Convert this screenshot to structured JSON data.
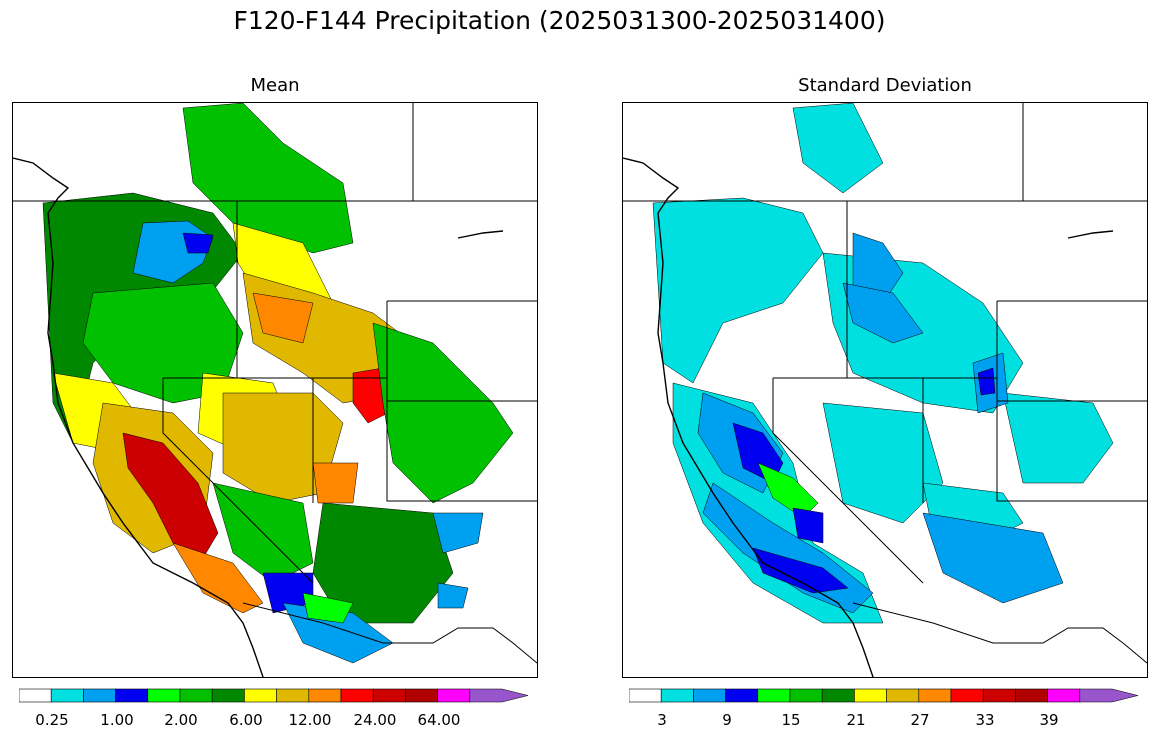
{
  "title": "F120-F144 Precipitation (2025031300-2025031400)",
  "panels": [
    {
      "title": "Mean",
      "colorbar": {
        "colors": [
          "#ffffff",
          "#00e0e0",
          "#00a0f0",
          "#0000f0",
          "#00ff00",
          "#00c000",
          "#008800",
          "#ffff00",
          "#e0b800",
          "#ff8800",
          "#ff0000",
          "#cc0000",
          "#b00000",
          "#ff00ff",
          "#9955cc"
        ],
        "tick_labels": [
          "0.25",
          "1.00",
          "2.00",
          "6.00",
          "12.00",
          "24.00",
          "64.00"
        ],
        "extend": "max"
      }
    },
    {
      "title": "Standard Deviation",
      "colorbar": {
        "colors": [
          "#ffffff",
          "#00e0e0",
          "#00a0f0",
          "#0000f0",
          "#00ff00",
          "#00c000",
          "#008800",
          "#ffff00",
          "#e0b800",
          "#ff8800",
          "#ff0000",
          "#cc0000",
          "#b00000",
          "#ff00ff",
          "#9955cc"
        ],
        "tick_labels": [
          "3",
          "9",
          "15",
          "21",
          "27",
          "33",
          "39"
        ],
        "extend": "max"
      }
    }
  ]
}
